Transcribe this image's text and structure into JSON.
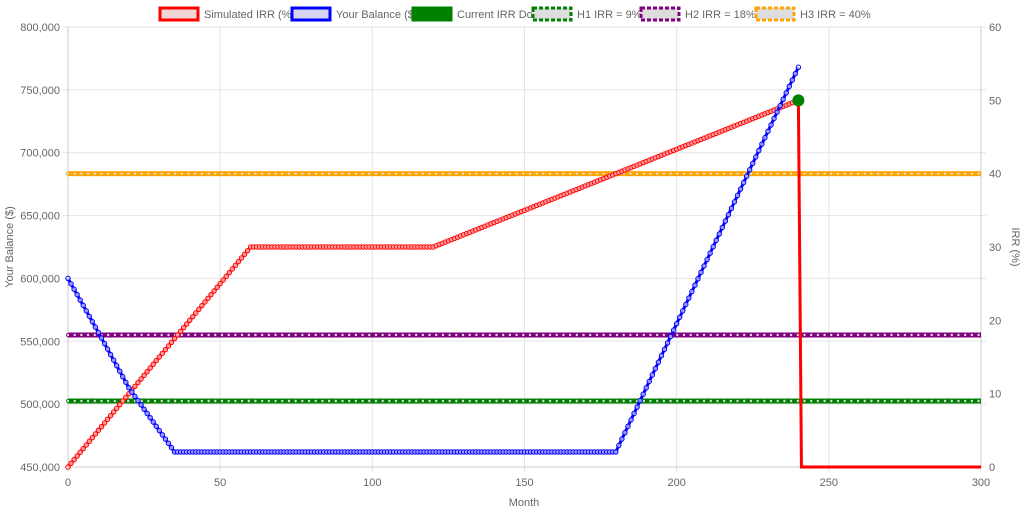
{
  "chart_data": {
    "type": "line",
    "xlabel": "Month",
    "ylabel_left": "Your Balance ($)",
    "ylabel_right": "IRR (%)",
    "xlim": [
      0,
      300
    ],
    "ylim_left": [
      450000,
      800000
    ],
    "ylim_right": [
      0,
      60
    ],
    "x_ticks": [
      "0",
      "50",
      "100",
      "150",
      "200",
      "250",
      "300"
    ],
    "y_left_ticks": [
      "450,000",
      "500,000",
      "550,000",
      "600,000",
      "650,000",
      "700,000",
      "750,000",
      "800,000"
    ],
    "y_right_ticks": [
      "0",
      "10",
      "20",
      "30",
      "40",
      "50",
      "60"
    ],
    "grid": true,
    "legend_position": "top",
    "legend": [
      {
        "label": "Simulated IRR (%)",
        "color": "#ff0000",
        "fill": "#f2d6d6",
        "dashed": false
      },
      {
        "label": "Your Balance ($)",
        "color": "#0000ff",
        "fill": "#d6d6f2",
        "dashed": false
      },
      {
        "label": "Current IRR Dot",
        "color": "#008000",
        "fill": "#008000",
        "dashed": false
      },
      {
        "label": "H1 IRR = 9%",
        "color": "#008000",
        "fill": "#dddddd",
        "dashed": true
      },
      {
        "label": "H2 IRR = 18%",
        "color": "#800080",
        "fill": "#dddddd",
        "dashed": true
      },
      {
        "label": "H3 IRR = 40%",
        "color": "#ffa500",
        "fill": "#dddddd",
        "dashed": true
      }
    ],
    "series": [
      {
        "name": "Simulated IRR (%)",
        "axis": "right",
        "color": "#ff0000",
        "marked_until": 240,
        "points": [
          [
            0,
            0
          ],
          [
            60,
            30
          ],
          [
            120,
            30
          ],
          [
            240,
            50
          ],
          [
            241,
            0
          ],
          [
            300,
            0
          ]
        ]
      },
      {
        "name": "Your Balance ($)",
        "axis": "left",
        "color": "#0000ff",
        "marked_until": 240,
        "points": [
          [
            0,
            600000
          ],
          [
            10,
            557000
          ],
          [
            20,
            513000
          ],
          [
            35,
            462000
          ],
          [
            180,
            462000
          ],
          [
            240,
            768000
          ]
        ]
      },
      {
        "name": "Current IRR Dot",
        "axis": "right",
        "color": "#008000",
        "point": [
          240,
          50
        ]
      },
      {
        "name": "H1 IRR = 9%",
        "axis": "right",
        "color": "#008000",
        "value": 9
      },
      {
        "name": "H2 IRR = 18%",
        "axis": "right",
        "color": "#800080",
        "value": 18
      },
      {
        "name": "H3 IRR = 40%",
        "axis": "right",
        "color": "#ffa500",
        "value": 40
      }
    ]
  }
}
